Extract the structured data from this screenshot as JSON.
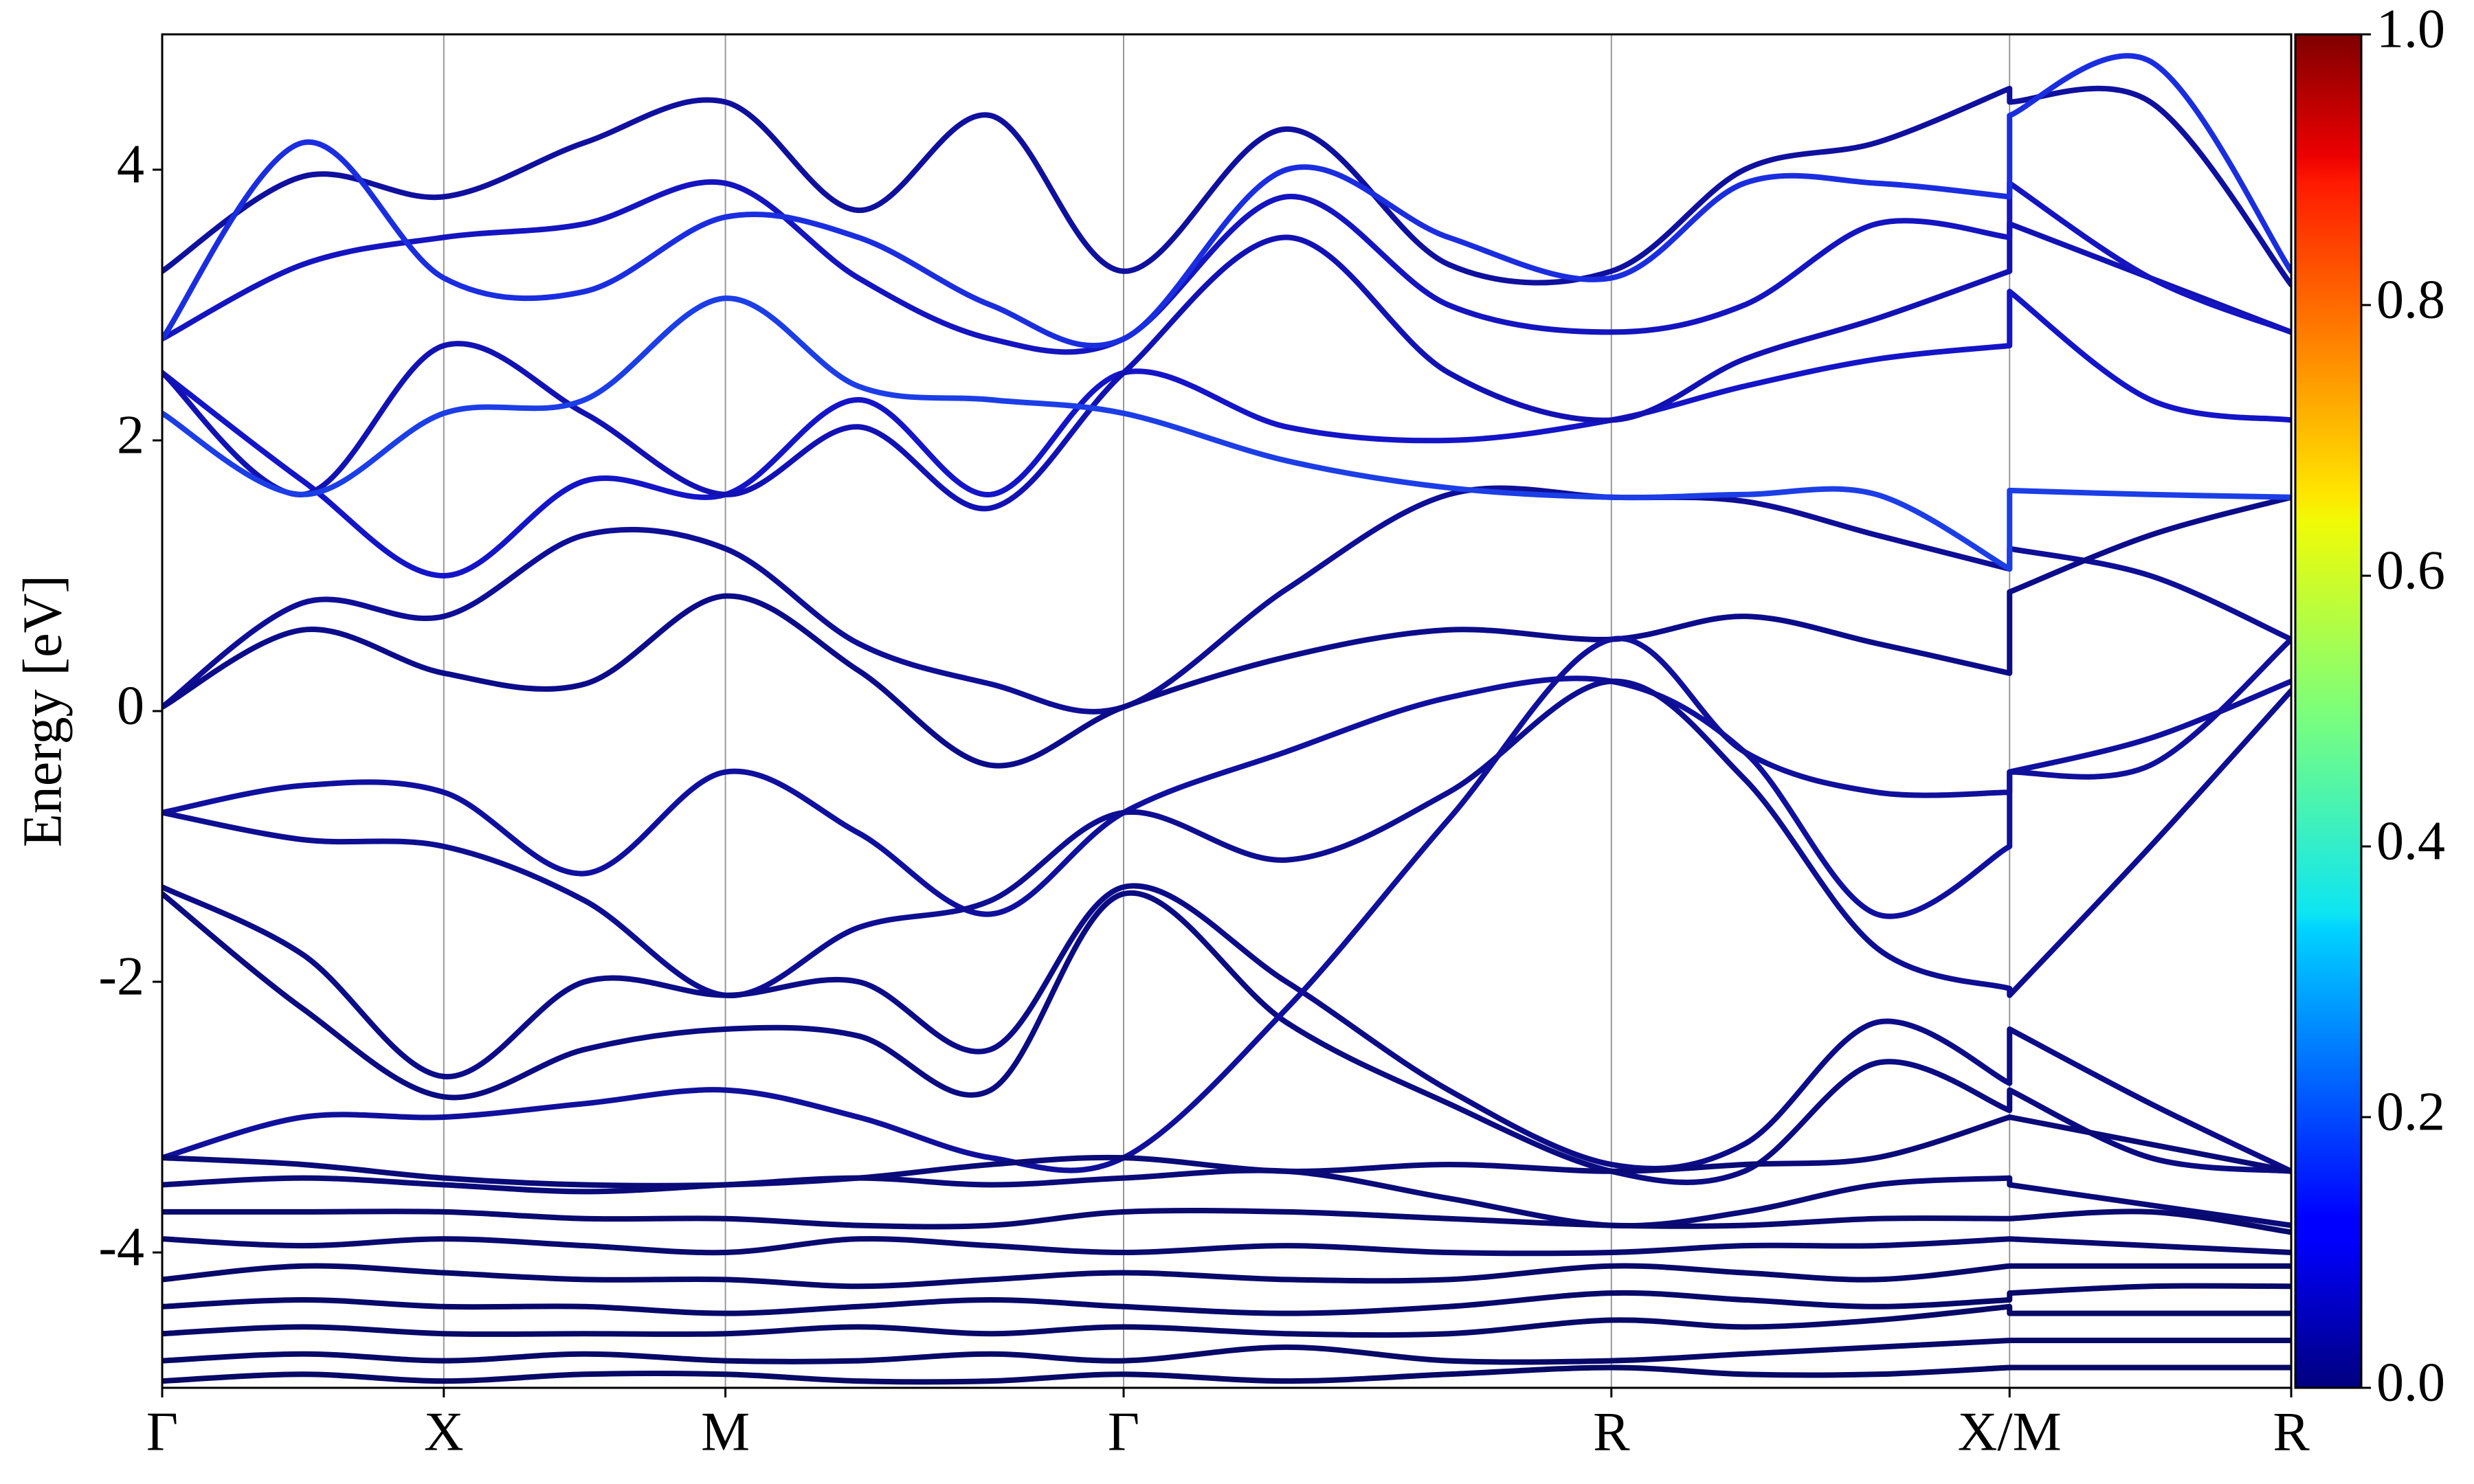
{
  "chart_data": {
    "type": "line",
    "ylabel": "Energy [eV]",
    "x": [
      0,
      0.25,
      0.5,
      0.75,
      1.0,
      1.236,
      1.471,
      1.707,
      1.996,
      2.284,
      2.573,
      2.809,
      3.044,
      3.28,
      3.28,
      3.53,
      3.78
    ],
    "xlim": [
      0,
      3.78
    ],
    "xticks": [
      {
        "value": 0,
        "label": "Γ"
      },
      {
        "value": 0.5,
        "label": "X"
      },
      {
        "value": 1.0,
        "label": "M"
      },
      {
        "value": 1.707,
        "label": "Γ"
      },
      {
        "value": 2.573,
        "label": "R"
      },
      {
        "value": 3.28,
        "label": "X/M"
      },
      {
        "value": 3.78,
        "label": "R"
      }
    ],
    "xgrid": true,
    "ylim": [
      -5,
      5
    ],
    "yticks": [
      -4,
      -2,
      0,
      2,
      4
    ],
    "colorbar": {
      "colormap": "jet",
      "lim": [
        0,
        1
      ],
      "ticks": [
        {
          "value": 0,
          "label": "0.0"
        },
        {
          "value": 0.2,
          "label": "0.2"
        },
        {
          "value": 0.4,
          "label": "0.4"
        },
        {
          "value": 0.6,
          "label": "0.6"
        },
        {
          "value": 0.8,
          "label": "0.8"
        },
        {
          "value": 1.0,
          "label": "1.0"
        }
      ]
    },
    "series": [
      {
        "color": "#0e0e96",
        "values": [
          0.03,
          0.8,
          0.7,
          1.3,
          1.2,
          0.5,
          0.2,
          0.03,
          0.9,
          1.6,
          1.58,
          1.55,
          1.3,
          1.05,
          1.2,
          1.0,
          0.53
        ]
      },
      {
        "color": "#0c0c8a",
        "values": [
          0.03,
          0.6,
          0.28,
          0.2,
          0.85,
          0.3,
          -0.4,
          0.03,
          0.4,
          0.6,
          0.53,
          0.7,
          0.5,
          0.28,
          0.88,
          1.3,
          1.58
        ]
      },
      {
        "color": "#10109e",
        "values": [
          -0.75,
          -0.55,
          -0.6,
          -1.2,
          -0.45,
          -0.9,
          -1.5,
          -0.75,
          -0.3,
          0.1,
          0.22,
          -0.3,
          -1.5,
          -1.0,
          -0.45,
          -0.2,
          0.22
        ]
      },
      {
        "color": "#0e0e92",
        "values": [
          -0.75,
          -0.95,
          -1.0,
          -1.4,
          -2.1,
          -1.6,
          -1.4,
          -0.75,
          -1.1,
          -0.6,
          0.22,
          -0.5,
          -1.75,
          -2.05,
          -2.1,
          -1.0,
          0.15
        ]
      },
      {
        "color": "#0c0c88",
        "values": [
          -1.3,
          -1.8,
          -2.7,
          -2.0,
          -2.1,
          -2.0,
          -2.5,
          -1.3,
          -2.0,
          -2.8,
          -3.35,
          -3.2,
          -2.3,
          -2.75,
          -2.35,
          -2.9,
          -3.4
        ]
      },
      {
        "color": "#0b0b82",
        "values": [
          -1.35,
          -2.2,
          -2.85,
          -2.5,
          -2.35,
          -2.4,
          -2.8,
          -1.35,
          -2.3,
          -2.9,
          -3.4,
          -3.4,
          -2.6,
          -2.95,
          -2.8,
          -3.3,
          -3.4
        ]
      },
      {
        "color": "#10109c",
        "values": [
          -3.3,
          -3.0,
          -3.0,
          -2.9,
          -2.8,
          -3.0,
          -3.3,
          -3.3,
          -2.2,
          -0.8,
          0.53,
          -0.3,
          -0.6,
          -0.6,
          -0.45,
          -0.4,
          0.53
        ]
      },
      {
        "color": "#1414c8",
        "values": [
          2.5,
          1.7,
          1.0,
          1.7,
          1.6,
          2.3,
          1.6,
          2.5,
          2.1,
          2.0,
          2.15,
          2.4,
          2.6,
          2.7,
          3.1,
          2.3,
          2.15
        ]
      },
      {
        "color": "#1212b4",
        "values": [
          2.5,
          1.6,
          2.7,
          2.2,
          1.6,
          2.1,
          1.5,
          2.5,
          3.5,
          2.5,
          2.15,
          2.6,
          2.9,
          3.25,
          3.6,
          3.2,
          2.8
        ]
      },
      {
        "color": "#1c3ee6",
        "values": [
          2.2,
          1.6,
          2.2,
          2.3,
          3.05,
          2.4,
          2.3,
          2.2,
          1.85,
          1.65,
          1.58,
          1.6,
          1.6,
          1.05,
          1.63,
          1.6,
          1.58
        ]
      },
      {
        "color": "#1414c0",
        "values": [
          2.75,
          3.3,
          3.5,
          3.6,
          3.9,
          3.2,
          2.75,
          2.75,
          3.8,
          3.0,
          2.8,
          3.0,
          3.6,
          3.5,
          3.9,
          3.2,
          2.8
        ]
      },
      {
        "color": "#10109e",
        "values": [
          3.25,
          3.95,
          3.8,
          4.2,
          4.5,
          3.7,
          4.4,
          3.25,
          4.3,
          3.3,
          3.25,
          4.0,
          4.2,
          4.6,
          4.5,
          4.5,
          3.15
        ]
      },
      {
        "color": "#1a2ee0",
        "values": [
          2.75,
          4.2,
          3.2,
          3.1,
          3.65,
          3.5,
          3.0,
          2.75,
          4.0,
          3.5,
          3.2,
          3.9,
          3.9,
          3.8,
          4.4,
          4.8,
          3.25
        ]
      },
      {
        "color": "#0a0a78",
        "values": [
          -3.3,
          -3.35,
          -3.45,
          -3.5,
          -3.5,
          -3.45,
          -3.35,
          -3.3,
          -3.4,
          -3.35,
          -3.4,
          -3.35,
          -3.3,
          -3.0,
          -3.0,
          -3.2,
          -3.4
        ]
      },
      {
        "color": "#0a0a78",
        "values": [
          -3.5,
          -3.45,
          -3.5,
          -3.55,
          -3.5,
          -3.45,
          -3.5,
          -3.45,
          -3.4,
          -3.6,
          -3.8,
          -3.7,
          -3.5,
          -3.45,
          -3.5,
          -3.65,
          -3.8
        ]
      },
      {
        "color": "#09096f",
        "values": [
          -3.7,
          -3.7,
          -3.7,
          -3.75,
          -3.75,
          -3.8,
          -3.8,
          -3.7,
          -3.7,
          -3.75,
          -3.8,
          -3.8,
          -3.75,
          -3.75,
          -3.75,
          -3.7,
          -3.85
        ]
      },
      {
        "color": "#09096f",
        "values": [
          -3.9,
          -3.95,
          -3.9,
          -3.95,
          -4.0,
          -3.9,
          -3.95,
          -4.0,
          -3.95,
          -4.0,
          -4.0,
          -3.95,
          -3.95,
          -3.9,
          -3.9,
          -3.95,
          -4.0
        ]
      },
      {
        "color": "#08086a",
        "values": [
          -4.2,
          -4.1,
          -4.15,
          -4.2,
          -4.2,
          -4.25,
          -4.2,
          -4.15,
          -4.2,
          -4.2,
          -4.1,
          -4.15,
          -4.2,
          -4.1,
          -4.1,
          -4.1,
          -4.1
        ]
      },
      {
        "color": "#08086a",
        "values": [
          -4.4,
          -4.35,
          -4.4,
          -4.4,
          -4.45,
          -4.4,
          -4.35,
          -4.4,
          -4.45,
          -4.4,
          -4.3,
          -4.35,
          -4.4,
          -4.35,
          -4.3,
          -4.25,
          -4.25
        ]
      },
      {
        "color": "#080868",
        "values": [
          -4.6,
          -4.55,
          -4.6,
          -4.6,
          -4.6,
          -4.55,
          -4.6,
          -4.55,
          -4.6,
          -4.6,
          -4.5,
          -4.55,
          -4.5,
          -4.4,
          -4.45,
          -4.45,
          -4.45
        ]
      },
      {
        "color": "#080868",
        "values": [
          -4.8,
          -4.75,
          -4.8,
          -4.75,
          -4.8,
          -4.8,
          -4.75,
          -4.8,
          -4.7,
          -4.8,
          -4.8,
          -4.75,
          -4.7,
          -4.65,
          -4.65,
          -4.65,
          -4.65
        ]
      },
      {
        "color": "#080866",
        "values": [
          -4.95,
          -4.9,
          -4.95,
          -4.9,
          -4.9,
          -4.95,
          -4.95,
          -4.9,
          -4.95,
          -4.9,
          -4.85,
          -4.9,
          -4.9,
          -4.85,
          -4.85,
          -4.85,
          -4.85
        ]
      }
    ]
  }
}
